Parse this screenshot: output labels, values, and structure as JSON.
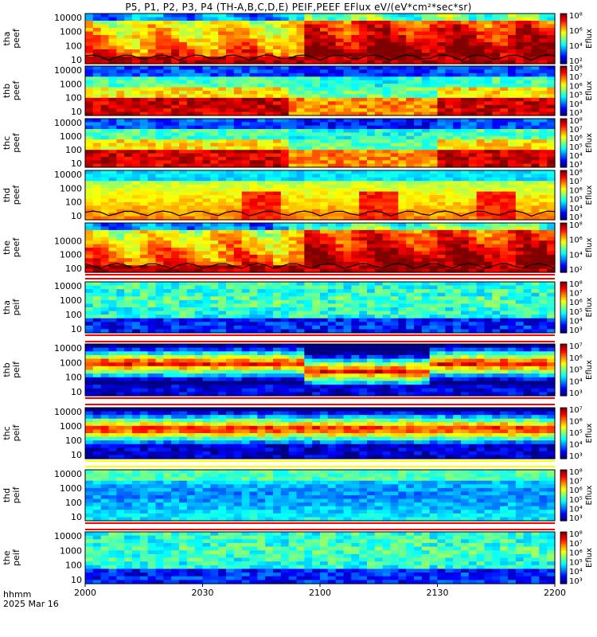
{
  "title": "P5, P1, P2, P3, P4 (TH-A,B,C,D,E) PEIF,PEEF EFlux eV/(eV*cm²*sec*sr)",
  "footer": {
    "line1": "hhmm",
    "line2": "2025 Mar 16"
  },
  "colorbar_label": "Eflux",
  "chart_data": [
    {
      "type": "heatmap",
      "label_lines": [
        "tha",
        "peef"
      ],
      "yticks": [
        "10",
        "100",
        "1000",
        "10000"
      ],
      "cbar": [
        "10²",
        "10⁴",
        "10⁶",
        "10⁸"
      ],
      "profile": "electron_hot",
      "seed": 1
    },
    {
      "type": "heatmap",
      "label_lines": [
        "thb",
        "peef"
      ],
      "yticks": [
        "10",
        "100",
        "1000",
        "10000"
      ],
      "cbar": [
        "10³",
        "10⁴",
        "10⁵",
        "10⁶",
        "10⁷",
        "10⁸"
      ],
      "profile": "electron_band",
      "seed": 2
    },
    {
      "type": "heatmap",
      "label_lines": [
        "thc",
        "peef"
      ],
      "yticks": [
        "10",
        "100",
        "1000",
        "10000"
      ],
      "cbar": [
        "10³",
        "10⁴",
        "10⁵",
        "10⁶",
        "10⁷",
        "10⁸"
      ],
      "profile": "electron_band",
      "seed": 3
    },
    {
      "type": "heatmap",
      "label_lines": [
        "thd",
        "peef"
      ],
      "yticks": [
        "10",
        "100",
        "1000",
        "10000"
      ],
      "cbar": [
        "10³",
        "10⁴",
        "10⁵",
        "10⁶",
        "10⁷",
        "10⁸"
      ],
      "profile": "electron_blocky",
      "seed": 4
    },
    {
      "type": "heatmap",
      "label_lines": [
        "the",
        "peef"
      ],
      "yticks": [
        "100",
        "1000",
        "10000"
      ],
      "cbar": [
        "10²",
        "10⁴",
        "10⁶",
        "10⁸"
      ],
      "profile": "electron_hot",
      "seed": 5
    },
    {
      "type": "heatmap",
      "label_lines": [
        "tha",
        "peif"
      ],
      "yticks": [
        "10",
        "100",
        "1000",
        "10000"
      ],
      "cbar": [
        "10³",
        "10⁴",
        "10⁵",
        "10⁶",
        "10⁷",
        "10⁸"
      ],
      "profile": "ion_low",
      "seed": 6
    },
    {
      "type": "heatmap",
      "label_lines": [
        "thb",
        "peif"
      ],
      "yticks": [
        "10",
        "100",
        "1000",
        "10000"
      ],
      "cbar": [
        "10³",
        "10⁴",
        "10⁵",
        "10⁶",
        "10⁷"
      ],
      "profile": "ion_band",
      "seed": 7
    },
    {
      "type": "heatmap",
      "label_lines": [
        "thc",
        "peif"
      ],
      "yticks": [
        "10",
        "100",
        "1000",
        "10000"
      ],
      "cbar": [
        "10³",
        "10⁴",
        "10⁵",
        "10⁶",
        "10⁷"
      ],
      "profile": "ion_band2",
      "seed": 8
    },
    {
      "type": "heatmap",
      "label_lines": [
        "thd",
        "peif"
      ],
      "yticks": [
        "10",
        "100",
        "1000",
        "10000"
      ],
      "cbar": [
        "10³",
        "10⁴",
        "10⁵",
        "10⁶",
        "10⁷",
        "10⁸"
      ],
      "profile": "ion_blue",
      "seed": 9
    },
    {
      "type": "heatmap",
      "label_lines": [
        "the",
        "peif"
      ],
      "yticks": [
        "10",
        "100",
        "1000",
        "10000"
      ],
      "cbar": [
        "10³",
        "10⁴",
        "10⁵",
        "10⁶",
        "10⁷",
        "10⁸"
      ],
      "profile": "ion_low",
      "seed": 10
    }
  ],
  "x_axis": {
    "ticks": [
      "2000",
      "2030",
      "2100",
      "2130",
      "2200"
    ]
  }
}
